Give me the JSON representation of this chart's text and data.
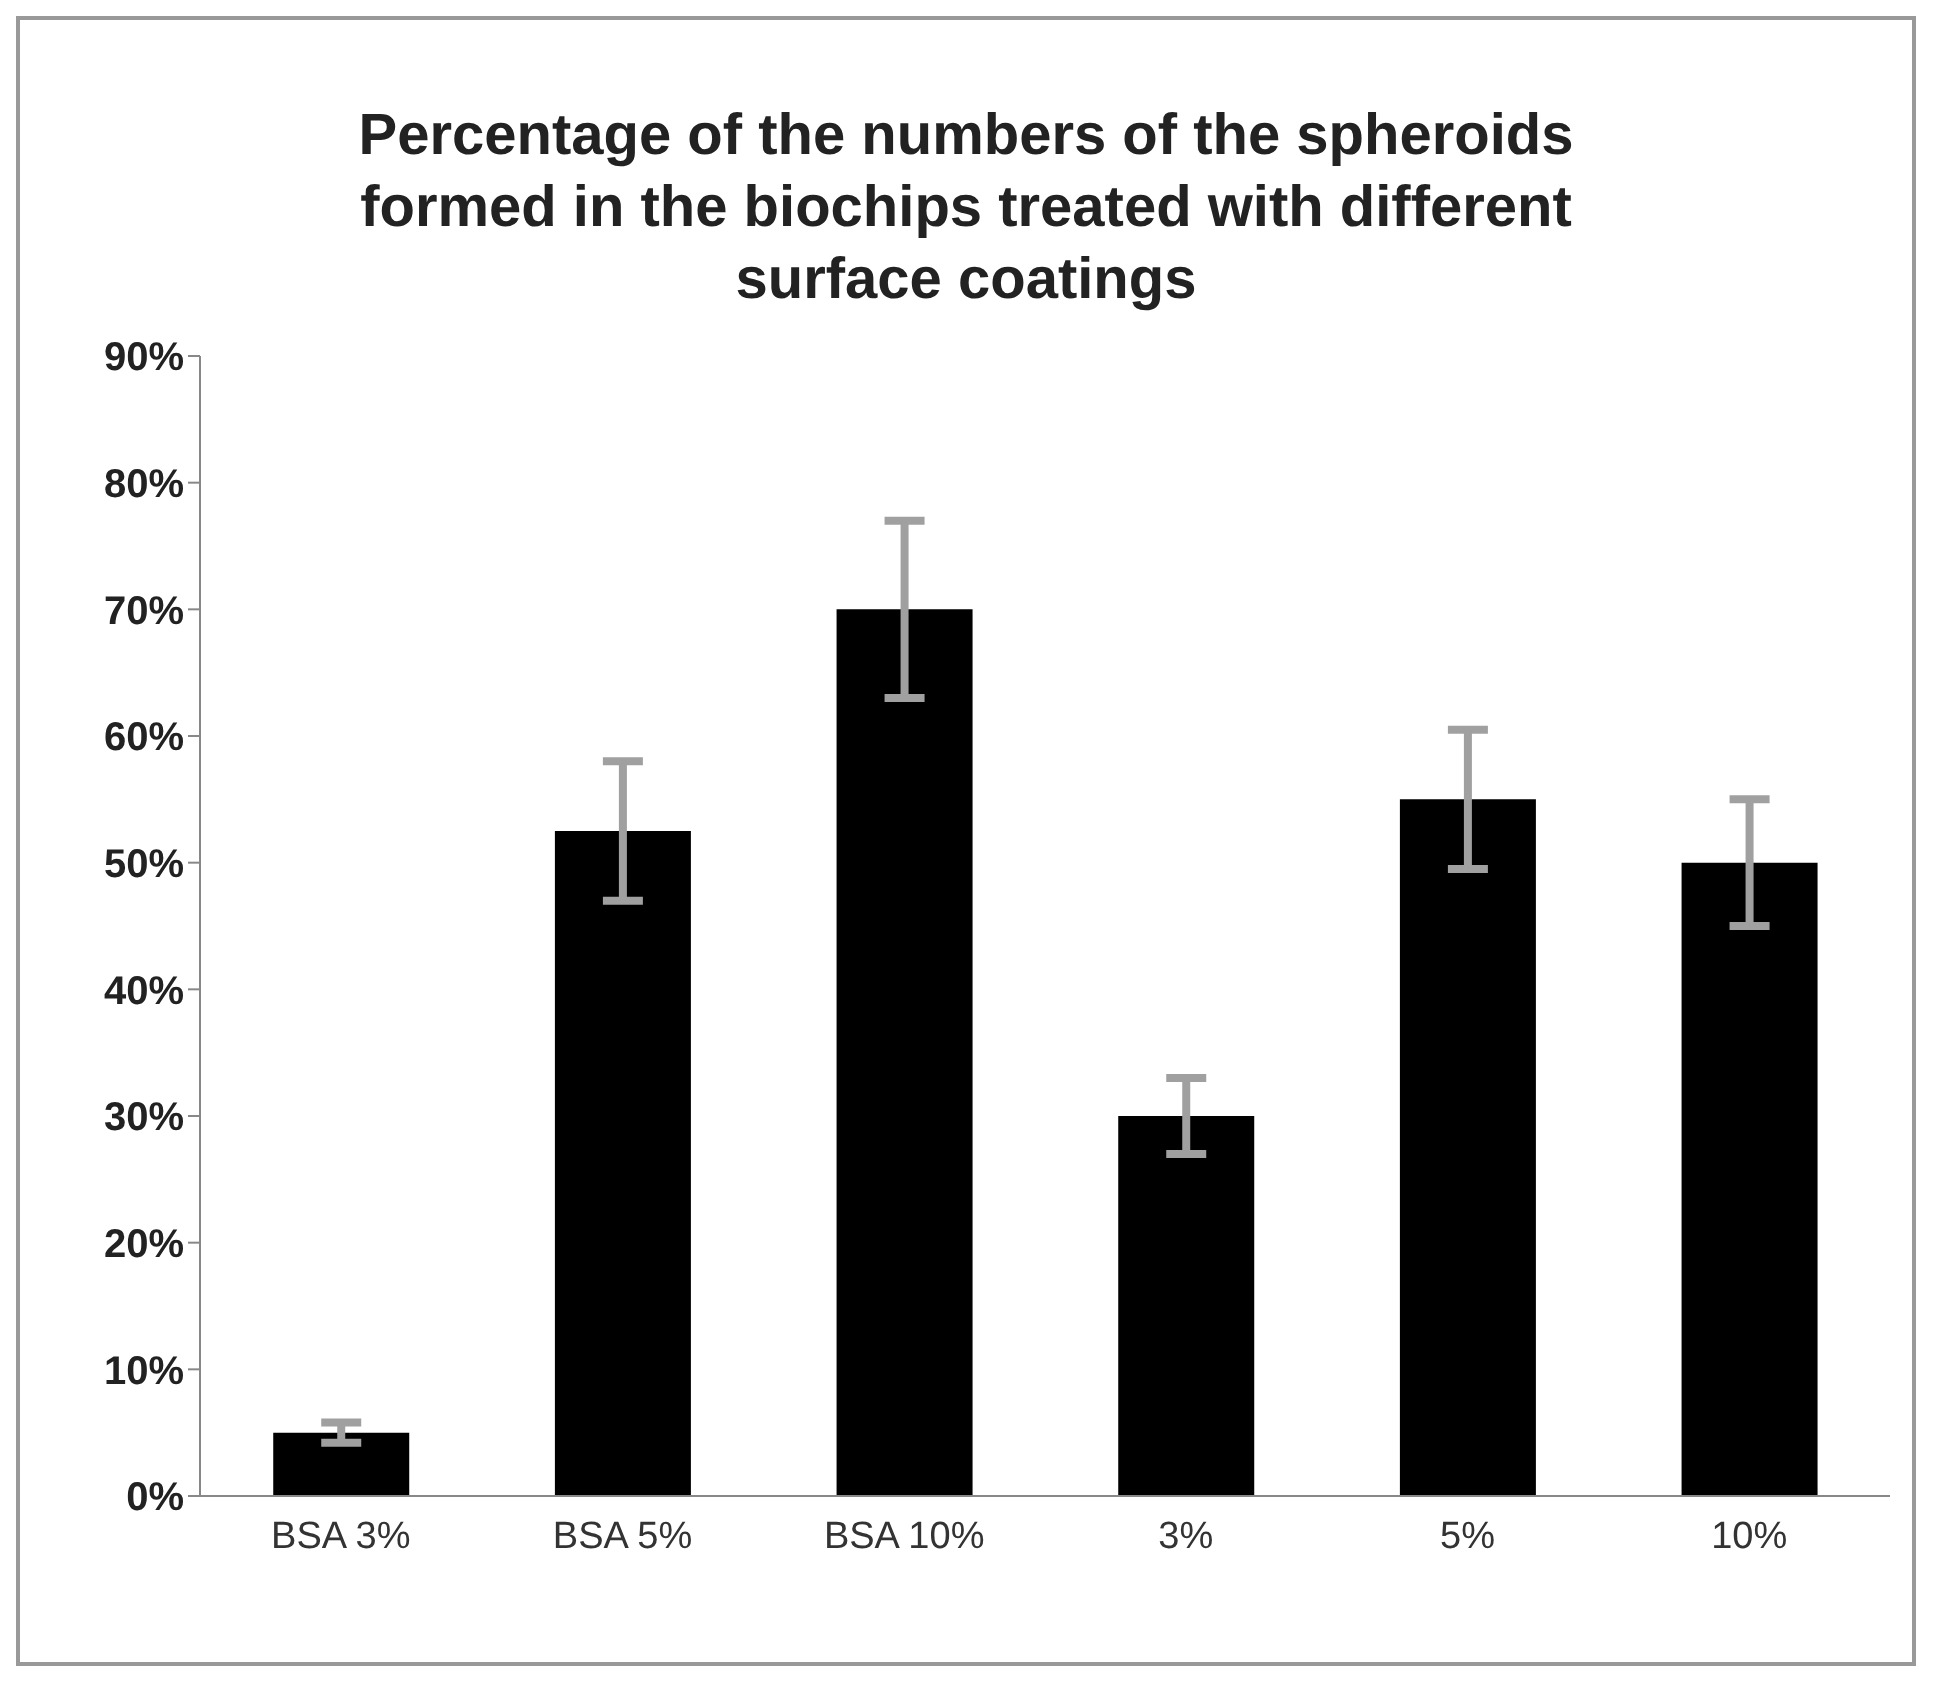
{
  "chart_data": {
    "type": "bar",
    "title": "Percentage of the numbers of the spheroids formed in the biochips treated with different surface coatings",
    "categories": [
      "BSA 3%",
      "BSA 5%",
      "BSA 10%",
      "3%",
      "5%",
      "10%"
    ],
    "values": [
      5,
      52.5,
      70,
      30,
      55,
      50
    ],
    "errors": [
      0.8,
      5.5,
      7,
      3,
      5.5,
      5
    ],
    "color": "#000000",
    "ylim": [
      0,
      90
    ],
    "yticks": [
      {
        "value": 0,
        "label": "0%"
      },
      {
        "value": 10,
        "label": "10%"
      },
      {
        "value": 20,
        "label": "20%"
      },
      {
        "value": 30,
        "label": "30%"
      },
      {
        "value": 40,
        "label": "40%"
      },
      {
        "value": 50,
        "label": "50%"
      },
      {
        "value": 60,
        "label": "60%"
      },
      {
        "value": 70,
        "label": "70%"
      },
      {
        "value": 80,
        "label": "80%"
      },
      {
        "value": 90,
        "label": "90%"
      }
    ],
    "grid": false,
    "legend": false
  }
}
